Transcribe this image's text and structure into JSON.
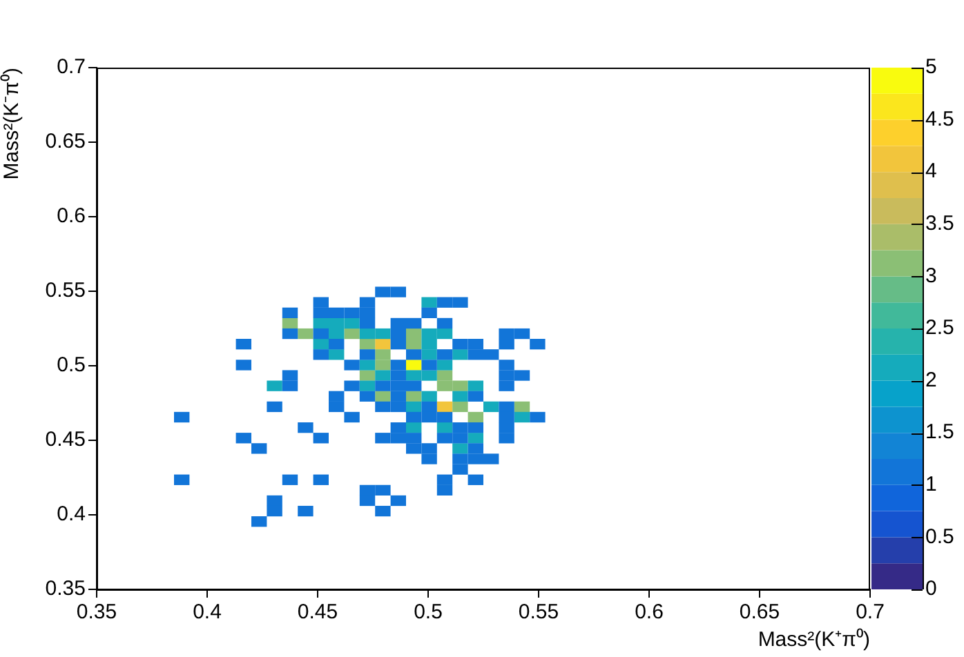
{
  "chart_data": {
    "type": "scatter",
    "xlabel": "Mass²(K⁺π⁰)",
    "ylabel": "Mass²(K⁻π⁰)",
    "marker": "square",
    "xlim": [
      0.35,
      0.7
    ],
    "ylim": [
      0.35,
      0.7
    ],
    "xticks": [
      0.35,
      0.4,
      0.45,
      0.5,
      0.55,
      0.6,
      0.65,
      0.7
    ],
    "yticks": [
      0.35,
      0.4,
      0.45,
      0.5,
      0.55,
      0.6,
      0.65,
      0.7
    ],
    "clim": [
      0,
      5
    ],
    "cticks": [
      0,
      0.5,
      1,
      1.5,
      2,
      2.5,
      3,
      3.5,
      4,
      4.5,
      5
    ],
    "series": [
      {
        "x": [
          0.4795,
          0.4865,
          0.4515,
          0.4725,
          0.5075,
          0.5145,
          0.4375,
          0.4515,
          0.4585,
          0.4655,
          0.4725,
          0.5005,
          0.4725,
          0.4865,
          0.4935,
          0.5075,
          0.4375,
          0.4515,
          0.4865,
          0.5355,
          0.5425,
          0.4165,
          0.4585,
          0.4865,
          0.5145,
          0.5215,
          0.5355,
          0.5495,
          0.4515,
          0.4725,
          0.4935,
          0.5075,
          0.5215,
          0.5285,
          0.4165,
          0.4655,
          0.4865,
          0.5005,
          0.5355,
          0.4375,
          0.4865,
          0.5355,
          0.5425,
          0.4375,
          0.4655,
          0.4795,
          0.4865,
          0.4935,
          0.5355,
          0.4585,
          0.4725,
          0.4865,
          0.5215,
          0.4305,
          0.4585,
          0.4795,
          0.4865,
          0.5005,
          0.5355,
          0.3885,
          0.4655,
          0.4935,
          0.5005,
          0.5075,
          0.5355,
          0.5495,
          0.4445,
          0.4865,
          0.5145,
          0.5215,
          0.5355,
          0.4165,
          0.4515,
          0.4795,
          0.4865,
          0.4935,
          0.5075,
          0.5145,
          0.5355,
          0.4235,
          0.4935,
          0.5005,
          0.5215,
          0.5005,
          0.5145,
          0.5215,
          0.5285,
          0.5145,
          0.3885,
          0.4375,
          0.4515,
          0.5075,
          0.5215,
          0.4725,
          0.4795,
          0.5075,
          0.4305,
          0.4725,
          0.4865,
          0.4305,
          0.4445,
          0.4795,
          0.4235
        ],
        "values": [
          0.5495,
          0.5495,
          0.5425,
          0.5425,
          0.5425,
          0.5425,
          0.5355,
          0.5355,
          0.5355,
          0.5355,
          0.5355,
          0.5355,
          0.5285,
          0.5285,
          0.5285,
          0.5285,
          0.5215,
          0.5215,
          0.5215,
          0.5215,
          0.5215,
          0.5145,
          0.5145,
          0.5145,
          0.5145,
          0.5145,
          0.5145,
          0.5145,
          0.5075,
          0.5075,
          0.5075,
          0.5075,
          0.5075,
          0.5075,
          0.5005,
          0.5005,
          0.5005,
          0.5005,
          0.5005,
          0.4935,
          0.4935,
          0.4935,
          0.4935,
          0.4865,
          0.4865,
          0.4865,
          0.4865,
          0.4865,
          0.4865,
          0.4795,
          0.4795,
          0.4795,
          0.4795,
          0.4725,
          0.4725,
          0.4725,
          0.4725,
          0.4725,
          0.4725,
          0.4655,
          0.4655,
          0.4655,
          0.4655,
          0.4655,
          0.4655,
          0.4655,
          0.4585,
          0.4585,
          0.4585,
          0.4585,
          0.4585,
          0.4515,
          0.4515,
          0.4515,
          0.4515,
          0.4515,
          0.4515,
          0.4515,
          0.4515,
          0.4445,
          0.4445,
          0.4445,
          0.4445,
          0.4375,
          0.4375,
          0.4375,
          0.4375,
          0.4305,
          0.4235,
          0.4235,
          0.4235,
          0.4235,
          0.4235,
          0.4165,
          0.4165,
          0.4165,
          0.4095,
          0.4095,
          0.4095,
          0.4025,
          0.4025,
          0.4025,
          0.3955
        ],
        "cvalues": [
          1,
          1,
          1,
          1,
          1,
          1,
          1,
          1,
          1,
          1,
          1,
          1,
          1,
          1,
          1,
          1,
          1,
          1,
          1,
          1,
          1,
          1,
          1,
          1,
          1,
          1,
          1,
          1,
          1,
          1,
          1,
          1,
          1,
          1,
          1,
          1,
          1,
          1,
          1,
          1,
          1,
          1,
          1,
          1,
          1,
          1,
          1,
          1,
          1,
          1,
          1,
          1,
          1,
          1,
          1,
          1,
          1,
          1,
          1,
          1,
          1,
          1,
          1,
          1,
          1,
          1,
          1,
          1,
          1,
          1,
          1,
          1,
          1,
          1,
          1,
          1,
          1,
          1,
          1,
          1,
          1,
          1,
          1,
          1,
          1,
          1,
          1,
          1,
          1,
          1,
          1,
          1,
          1,
          1,
          1,
          1,
          1,
          1,
          1,
          1,
          1,
          1,
          1
        ]
      },
      {
        "x": [
          0.5005,
          0.4515,
          0.4585,
          0.4655,
          0.4585,
          0.4725,
          0.4795,
          0.5005,
          0.5075,
          0.4515,
          0.5005,
          0.4585,
          0.5005,
          0.5145,
          0.4725,
          0.5075,
          0.4795,
          0.4935,
          0.5005,
          0.4305,
          0.4725,
          0.5215,
          0.5005,
          0.5145,
          0.4935,
          0.5285,
          0.5425,
          0.4935,
          0.5075,
          0.5215,
          0.5145
        ],
        "values": [
          0.5425,
          0.5285,
          0.5285,
          0.5285,
          0.5215,
          0.5215,
          0.5215,
          0.5215,
          0.5215,
          0.5145,
          0.5145,
          0.5075,
          0.5075,
          0.5075,
          0.5005,
          0.5005,
          0.4935,
          0.4935,
          0.4935,
          0.4865,
          0.4865,
          0.4865,
          0.4795,
          0.4795,
          0.4725,
          0.4725,
          0.4655,
          0.4585,
          0.4585,
          0.4515,
          0.4445
        ],
        "cvalues": [
          2,
          2,
          2,
          2,
          2,
          2,
          2,
          2,
          2,
          2,
          2,
          2,
          2,
          2,
          2,
          2,
          2,
          2,
          2,
          2,
          2,
          2,
          2,
          2,
          2,
          2,
          2,
          2,
          2,
          2,
          2
        ]
      },
      {
        "x": [
          0.4375,
          0.4445,
          0.4655,
          0.4935,
          0.4725,
          0.4935,
          0.4795,
          0.4795,
          0.4725,
          0.5075,
          0.5075,
          0.5145,
          0.4795,
          0.4935,
          0.5145,
          0.5425,
          0.5215
        ],
        "values": [
          0.5285,
          0.5215,
          0.5215,
          0.5215,
          0.5145,
          0.5145,
          0.5075,
          0.5005,
          0.4935,
          0.4935,
          0.4865,
          0.4865,
          0.4795,
          0.4795,
          0.4725,
          0.4725,
          0.4655
        ],
        "cvalues": [
          3,
          3,
          3,
          3,
          3,
          3,
          3,
          3,
          3,
          3,
          3,
          3,
          3,
          3,
          3,
          3,
          3
        ]
      },
      {
        "x": [
          0.4795,
          0.5075
        ],
        "values": [
          0.5145,
          0.4725
        ],
        "cvalues": [
          4,
          4
        ]
      },
      {
        "x": [
          0.4935
        ],
        "values": [
          0.5005
        ],
        "cvalues": [
          5
        ]
      }
    ]
  }
}
